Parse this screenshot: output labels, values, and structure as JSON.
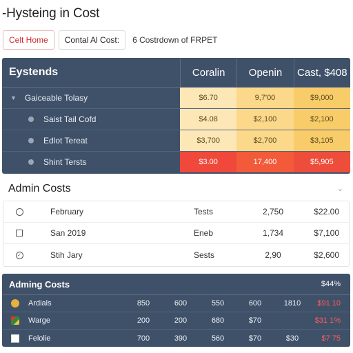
{
  "page": {
    "title": "-Hysteing in Cost"
  },
  "tabs": [
    {
      "label": "Celt Home",
      "active": true
    },
    {
      "label": "Contal Al Cost:",
      "active": false
    },
    {
      "label": "6 Costrdown of FRPET",
      "active": false
    }
  ],
  "top_table": {
    "headers": [
      "Eystends",
      "Coralin",
      "Openin",
      "Cast, $408"
    ],
    "rows": [
      {
        "label": "Gaiceable Tolasy",
        "marker": "caret",
        "values": [
          "$6.70",
          "9,7'00",
          "$9,000"
        ]
      },
      {
        "label": "Saist Tail Cofd",
        "marker": "dot",
        "values": [
          "$4.08",
          "$2,100",
          "$2,100"
        ]
      },
      {
        "label": "Edlot Tereat",
        "marker": "dot",
        "values": [
          "$3,700",
          "$2,700",
          "$3,105"
        ]
      },
      {
        "label": "Shint Tersts",
        "marker": "dot",
        "values": [
          "$3.00",
          "17,400",
          "$5,905"
        ]
      }
    ],
    "cell_colors": [
      [
        "#fde7b7",
        "#fbd88a",
        "#f9cc6a"
      ],
      [
        "#fde7b7",
        "#fbd88a",
        "#f9cc6a"
      ],
      [
        "#fde7b7",
        "#fbd88a",
        "#f9cc6a"
      ],
      [
        "#f0483a",
        "#f25a3a",
        "#ef4d3b"
      ]
    ]
  },
  "admin_light": {
    "title": "Admin Costs",
    "rows": [
      {
        "icon": "clock-icon",
        "name": "February",
        "kind": "Tests",
        "value": "2,750",
        "amount": "$22.00"
      },
      {
        "icon": "checkbox-icon",
        "name": "San 2019",
        "kind": "Eneb",
        "value": "1,734",
        "amount": "$7,100"
      },
      {
        "icon": "check-circle-icon",
        "name": "Stih Jary",
        "kind": "Sests",
        "value": "2,90",
        "amount": "$2,600"
      }
    ]
  },
  "admin_dark": {
    "title": "Adming Costs",
    "total": "$44%",
    "rows": [
      {
        "icon": "badge-icon",
        "name": "Ardials",
        "nums": [
          "850",
          "600",
          "550",
          "600",
          "1810"
        ],
        "red": "$91 10"
      },
      {
        "icon": "flag-icon",
        "name": "Warge",
        "nums": [
          "200",
          "200",
          "680",
          "$70"
        ],
        "red": "$31 1%"
      },
      {
        "icon": "square-icon",
        "name": "Felolie",
        "nums": [
          "700",
          "390",
          "560",
          "$70",
          "$30"
        ],
        "red": "$7 75"
      }
    ]
  }
}
